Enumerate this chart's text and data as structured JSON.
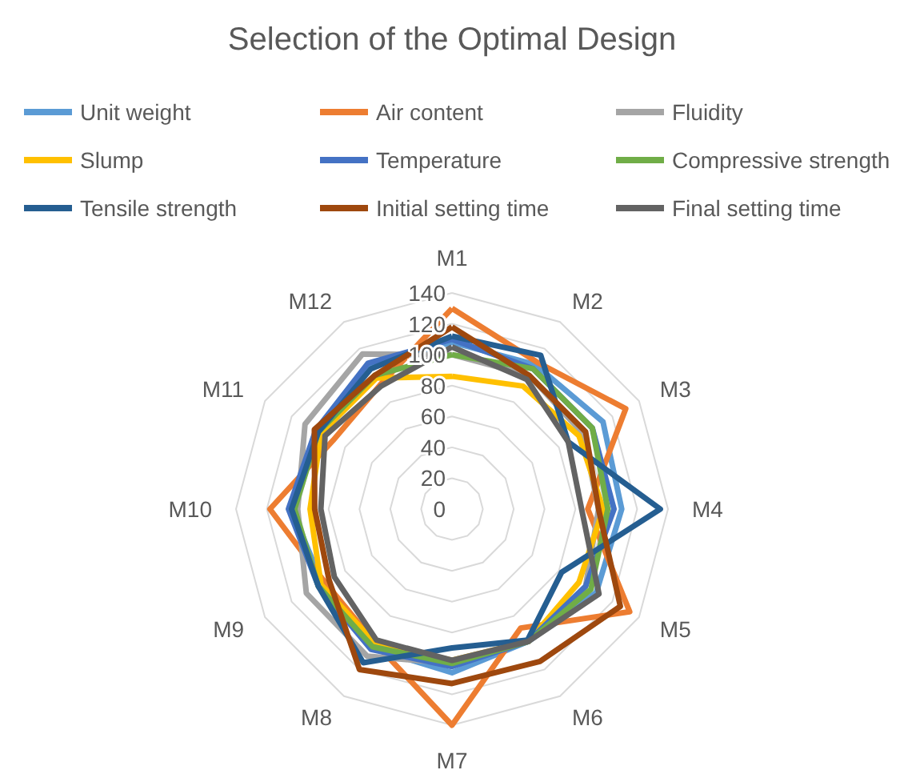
{
  "chart_data": {
    "type": "radar",
    "title": "Selection of the Optimal Design",
    "categories": [
      "M1",
      "M2",
      "M3",
      "M4",
      "M5",
      "M6",
      "M7",
      "M8",
      "M9",
      "M10",
      "M11",
      "M12"
    ],
    "ylim": [
      0,
      140
    ],
    "yticks": [
      0,
      20,
      40,
      60,
      80,
      100,
      120,
      140
    ],
    "grid": true,
    "legend": "top",
    "marker": "none",
    "line_style": "solid",
    "series": [
      {
        "name": "Unit weight",
        "color": "#5b9bd5",
        "values": [
          108,
          108,
          113,
          110,
          108,
          99,
          106,
          104,
          97,
          104,
          100,
          107
        ]
      },
      {
        "name": "Air content",
        "color": "#ed7d31",
        "values": [
          130,
          110,
          130,
          88,
          133,
          89,
          140,
          100,
          95,
          118,
          89,
          93
        ]
      },
      {
        "name": "Fluidity",
        "color": "#a5a5a5",
        "values": [
          100,
          100,
          98,
          95,
          100,
          99,
          100,
          110,
          109,
          100,
          110,
          116
        ]
      },
      {
        "name": "Slump",
        "color": "#ffc000",
        "values": [
          86,
          92,
          95,
          98,
          95,
          99,
          98,
          100,
          98,
          92,
          98,
          98
        ]
      },
      {
        "name": "Temperature",
        "color": "#4472c4",
        "values": [
          110,
          105,
          105,
          105,
          100,
          99,
          102,
          105,
          100,
          106,
          102,
          109
        ]
      },
      {
        "name": "Compressive strength",
        "color": "#70ad47",
        "values": [
          100,
          105,
          105,
          101,
          104,
          99,
          100,
          103,
          100,
          102,
          100,
          100
        ]
      },
      {
        "name": "Tensile strength",
        "color": "#255e91",
        "values": [
          112,
          115,
          87,
          135,
          82,
          98,
          90,
          115,
          100,
          104,
          100,
          105
        ]
      },
      {
        "name": "Initial setting time",
        "color": "#9e480e",
        "values": [
          118,
          100,
          100,
          95,
          126,
          114,
          113,
          120,
          92,
          89,
          103,
          100
        ]
      },
      {
        "name": "Final setting time",
        "color": "#636363",
        "values": [
          105,
          97,
          87,
          84,
          110,
          99,
          98,
          98,
          88,
          85,
          95,
          92
        ]
      }
    ]
  }
}
